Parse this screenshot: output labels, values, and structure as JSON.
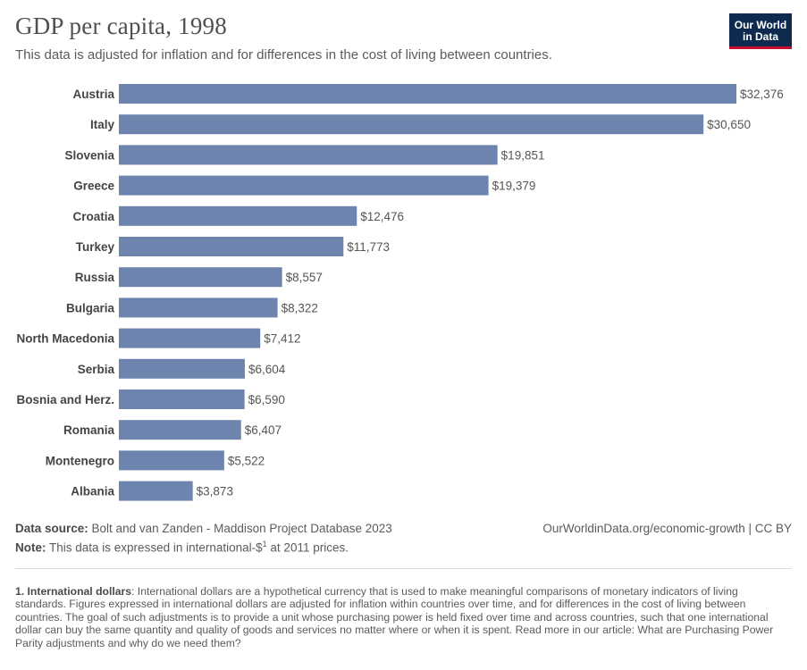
{
  "title": "GDP per capita, 1998",
  "subtitle": "This data is adjusted for inflation and for differences in the cost of living between countries.",
  "logo": {
    "line1": "Our World",
    "line2": "in Data"
  },
  "colors": {
    "bar": "#6d84ae",
    "logo_bg": "#0e2a4f",
    "logo_accent": "#c8102e"
  },
  "chart_data": {
    "type": "bar",
    "orientation": "horizontal",
    "categories": [
      "Austria",
      "Italy",
      "Slovenia",
      "Greece",
      "Croatia",
      "Turkey",
      "Russia",
      "Bulgaria",
      "North Macedonia",
      "Serbia",
      "Bosnia and Herz.",
      "Romania",
      "Montenegro",
      "Albania"
    ],
    "values": [
      32376,
      30650,
      19851,
      19379,
      12476,
      11773,
      8557,
      8322,
      7412,
      6604,
      6590,
      6407,
      5522,
      3873
    ],
    "value_labels": [
      "$32,376",
      "$30,650",
      "$19,851",
      "$19,379",
      "$12,476",
      "$11,773",
      "$8,557",
      "$8,322",
      "$7,412",
      "$6,604",
      "$6,590",
      "$6,407",
      "$5,522",
      "$3,873"
    ],
    "title": "GDP per capita, 1998",
    "xlim": [
      0,
      32376
    ],
    "grid": false
  },
  "footer": {
    "source_label": "Data source:",
    "source_text": "Bolt and van Zanden - Maddison Project Database 2023",
    "note_label": "Note:",
    "note_text_pre": "This data is expressed in international-$",
    "note_sup": "1",
    "note_text_post": " at 2011 prices.",
    "credit": "OurWorldinData.org/economic-growth | CC BY"
  },
  "footnote": {
    "label": "1. International dollars",
    "text": ": International dollars are a hypothetical currency that is used to make meaningful comparisons of monetary indicators of living standards. Figures expressed in international dollars are adjusted for inflation within countries over time, and for differences in the cost of living between countries. The goal of such adjustments is to provide a unit whose purchasing power is held fixed over time and across countries, such that one international dollar can buy the same quantity and quality of goods and services no matter where or when it is spent. Read more in our article: What are Purchasing Power Parity adjustments and why do we need them?"
  }
}
